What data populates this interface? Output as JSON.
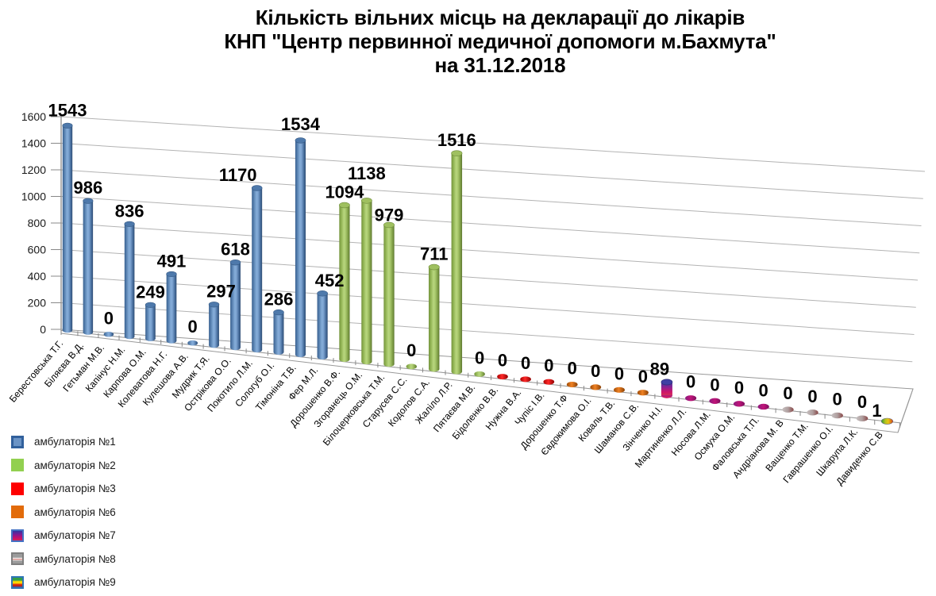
{
  "title": {
    "line1": "Кількість вільних місць на декларації до лікарів",
    "line2": "КНП \"Центр первинної медичної допомоги м.Бахмута\"",
    "line3": "на 31.12.2018"
  },
  "chart_data": {
    "type": "bar",
    "title": "Кількість вільних місць на декларації до лікарів КНП \"Центр первинної медичної допомоги м.Бахмута\" на 31.12.2018",
    "ylim": [
      0,
      1600
    ],
    "ytick_step": 200,
    "yticks": [
      0,
      200,
      400,
      600,
      800,
      1000,
      1200,
      1400,
      1600
    ],
    "grid": true,
    "style": "3d-cylinder",
    "legend_position": "bottom-left",
    "categories": [
      "Берестовська Т.Г.",
      "Біляєва В.Д.",
      "Гетьман М.В.",
      "Капінус Н.М.",
      "Карпова О.М.",
      "Колеватова Н.Г.",
      "Кулешова А.В.",
      "Мудрик Т.Я.",
      "Острікова О.О.",
      "Покотило Л.М.",
      "Сологуб О.І.",
      "Тімоніна Т.В.",
      "Фер М.Л.",
      "Дорошенко В.Ф.",
      "Згоранець О.М.",
      "Білоцерковська Т.М.",
      "Старусев С.С.",
      "Кодолов С.А.",
      "Жаліло Л.Р.",
      "Пятаєва М.В.",
      "Бідоленко В.В.",
      "Нужна В.А.",
      "Чупіс І.В.",
      "Дорошенко Т.Ф",
      "Євдокимова О.І.",
      "Коваль Т.В.",
      "Шаманов С.В.",
      "Зінченко Н.І.",
      "Мартиненко Л.Л.",
      "Носова Л.М.",
      "Осмуха О.М.",
      "Фаловська Т.П.",
      "Андріанова М. В",
      "Ващенко Т.М.",
      "Гаврашенко О.І.",
      "Шкарупа Л.К.",
      "Давиденко С.В"
    ],
    "values": [
      1543,
      986,
      0,
      836,
      249,
      491,
      0,
      297,
      618,
      1170,
      286,
      1534,
      452,
      1094,
      1138,
      979,
      0,
      711,
      1516,
      0,
      0,
      0,
      0,
      0,
      0,
      0,
      0,
      89,
      0,
      0,
      0,
      0,
      0,
      0,
      0,
      0,
      1
    ],
    "point_series": [
      1,
      1,
      1,
      1,
      1,
      1,
      1,
      1,
      1,
      1,
      1,
      1,
      1,
      2,
      2,
      2,
      2,
      2,
      2,
      2,
      3,
      3,
      3,
      6,
      6,
      6,
      6,
      7,
      7,
      7,
      7,
      7,
      8,
      8,
      8,
      8,
      9
    ],
    "series_colors": {
      "1": "#4F81BD",
      "2": "#92D050",
      "3": "#FF0000",
      "6": "#E26B0A",
      "7": "#3434A0→#D42352 gradient",
      "8": "gray/red striped",
      "9": "green/yellow/red striped"
    },
    "legend": [
      {
        "series": 1,
        "label": "амбулаторія №1"
      },
      {
        "series": 2,
        "label": "амбулаторія №2"
      },
      {
        "series": 3,
        "label": "амбулаторія №3"
      },
      {
        "series": 6,
        "label": "амбулаторія №6"
      },
      {
        "series": 7,
        "label": "амбулаторія №7"
      },
      {
        "series": 8,
        "label": "амбулаторія №8"
      },
      {
        "series": 9,
        "label": "амбулаторія №9"
      }
    ]
  }
}
